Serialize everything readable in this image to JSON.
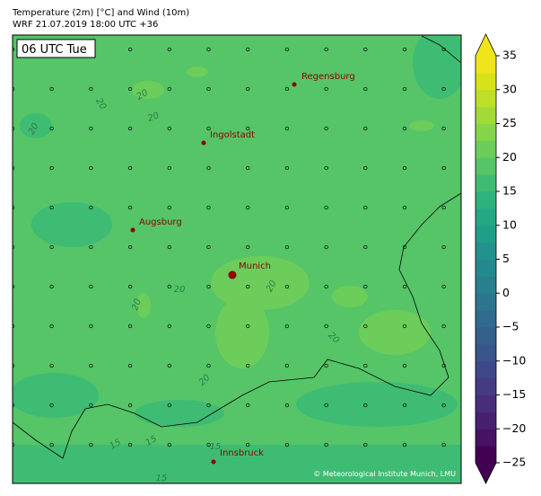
{
  "header": {
    "line1": "Temperature (2m) [°C] and Wind (10m)",
    "line2": "WRF 21.07.2019 18:00 UTC +36"
  },
  "time_label": "06 UTC Tue",
  "cities": [
    "Regensburg",
    "Ingolstadt",
    "Augsburg",
    "Munich",
    "Innsbruck"
  ],
  "contour_labels": [
    "20",
    "20",
    "20",
    "20",
    "20",
    "20",
    "20",
    "20",
    "20",
    "15",
    "15",
    "15",
    "15"
  ],
  "copyright": "© Meteorological Institute Munich, LMU",
  "colorbar": {
    "lim": [
      -25,
      35
    ],
    "ticks": [
      {
        "value": -25,
        "label": "−25"
      },
      {
        "value": -20,
        "label": "−20"
      },
      {
        "value": -15,
        "label": "−15"
      },
      {
        "value": -10,
        "label": "−10"
      },
      {
        "value": -5,
        "label": "−5"
      },
      0,
      5,
      10,
      15,
      20,
      25,
      30,
      35
    ],
    "colors": [
      "#440154",
      "#471164",
      "#482071",
      "#472d7b",
      "#443b84",
      "#3f4889",
      "#3a548c",
      "#35608d",
      "#306a8e",
      "#2c758e",
      "#287f8e",
      "#24898e",
      "#21938c",
      "#1f9e89",
      "#23a884",
      "#2db27d",
      "#3fbc73",
      "#55c568",
      "#6ccd5a",
      "#86d549",
      "#a2da37",
      "#bddf26",
      "#d8e219",
      "#f0e51b"
    ]
  }
}
